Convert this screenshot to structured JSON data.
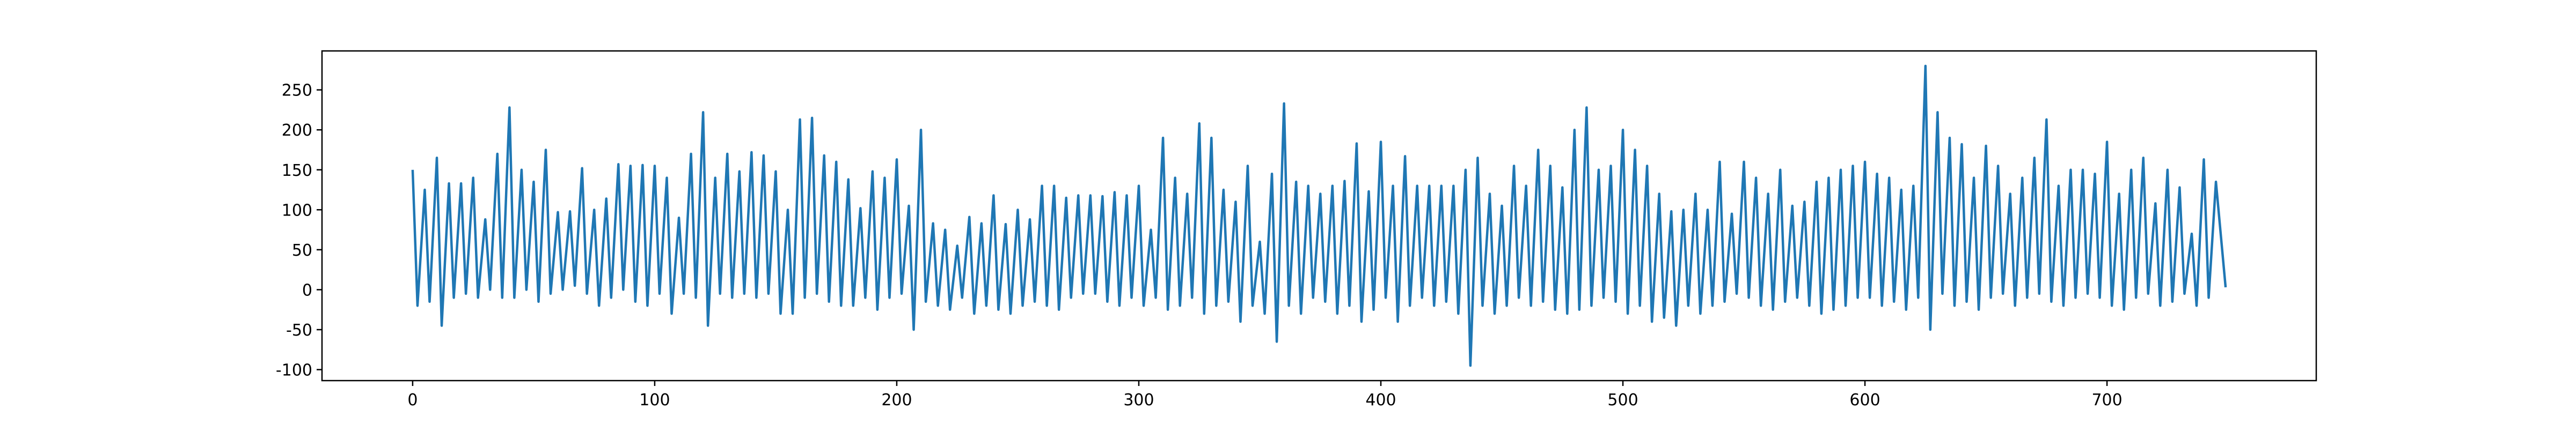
{
  "chart_data": {
    "type": "line",
    "color": "#1f77b4",
    "xlim": [
      -37.45,
      786.45
    ],
    "ylim": [
      -113.75,
      298.75
    ],
    "xticks": [
      0,
      100,
      200,
      300,
      400,
      500,
      600,
      700
    ],
    "yticks": [
      -100,
      -50,
      0,
      50,
      100,
      150,
      200,
      250
    ],
    "x": [
      0,
      2,
      5,
      7,
      10,
      12,
      15,
      17,
      20,
      22,
      25,
      27,
      30,
      32,
      35,
      37,
      40,
      42,
      45,
      47,
      50,
      52,
      55,
      57,
      60,
      62,
      65,
      67,
      70,
      72,
      75,
      77,
      80,
      82,
      85,
      87,
      90,
      92,
      95,
      97,
      100,
      102,
      105,
      107,
      110,
      112,
      115,
      117,
      120,
      122,
      125,
      127,
      130,
      132,
      135,
      137,
      140,
      142,
      145,
      147,
      150,
      152,
      155,
      157,
      160,
      162,
      165,
      167,
      170,
      172,
      175,
      177,
      180,
      182,
      185,
      187,
      190,
      192,
      195,
      197,
      200,
      202,
      205,
      207,
      210,
      212,
      215,
      217,
      220,
      222,
      225,
      227,
      230,
      232,
      235,
      237,
      240,
      242,
      245,
      247,
      250,
      252,
      255,
      257,
      260,
      262,
      265,
      267,
      270,
      272,
      275,
      277,
      280,
      282,
      285,
      287,
      290,
      292,
      295,
      297,
      300,
      302,
      305,
      307,
      310,
      312,
      315,
      317,
      320,
      322,
      325,
      327,
      330,
      332,
      335,
      337,
      340,
      342,
      345,
      347,
      350,
      352,
      355,
      357,
      360,
      362,
      365,
      367,
      370,
      372,
      375,
      377,
      380,
      382,
      385,
      387,
      390,
      392,
      395,
      397,
      400,
      402,
      405,
      407,
      410,
      412,
      415,
      417,
      420,
      422,
      425,
      427,
      430,
      432,
      435,
      437,
      440,
      442,
      445,
      447,
      450,
      452,
      455,
      457,
      460,
      462,
      465,
      467,
      470,
      472,
      475,
      477,
      480,
      482,
      485,
      487,
      490,
      492,
      495,
      497,
      500,
      502,
      505,
      507,
      510,
      512,
      515,
      517,
      520,
      522,
      525,
      527,
      530,
      532,
      535,
      537,
      540,
      542,
      545,
      547,
      550,
      552,
      555,
      557,
      560,
      562,
      565,
      567,
      570,
      572,
      575,
      577,
      580,
      582,
      585,
      587,
      590,
      592,
      595,
      597,
      600,
      602,
      605,
      607,
      610,
      612,
      615,
      617,
      620,
      622,
      625,
      627,
      630,
      632,
      635,
      637,
      640,
      642,
      645,
      647,
      650,
      652,
      655,
      657,
      660,
      662,
      665,
      667,
      670,
      672,
      675,
      677,
      680,
      682,
      685,
      687,
      690,
      692,
      695,
      697,
      700,
      702,
      705,
      707,
      710,
      712,
      715,
      717,
      720,
      722,
      725,
      727,
      730,
      732,
      735,
      737,
      740,
      742,
      745,
      749
    ],
    "values": [
      150,
      -20,
      125,
      -15,
      165,
      -45,
      133,
      -10,
      133,
      -5,
      140,
      -10,
      88,
      0,
      170,
      -10,
      228,
      -10,
      150,
      0,
      135,
      -15,
      175,
      -5,
      97,
      0,
      98,
      5,
      152,
      -5,
      100,
      -20,
      114,
      -10,
      157,
      0,
      155,
      -15,
      156,
      -20,
      155,
      -5,
      140,
      -30,
      90,
      -5,
      170,
      -10,
      222,
      -45,
      140,
      -5,
      170,
      -10,
      148,
      -5,
      172,
      -10,
      168,
      -5,
      148,
      -30,
      100,
      -30,
      213,
      -10,
      215,
      -5,
      168,
      -15,
      160,
      -20,
      138,
      -20,
      102,
      -10,
      148,
      -25,
      140,
      -10,
      163,
      -5,
      105,
      -50,
      200,
      -15,
      83,
      -20,
      75,
      -25,
      55,
      -10,
      91,
      -30,
      83,
      -20,
      118,
      -25,
      82,
      -30,
      100,
      -20,
      88,
      -15,
      130,
      -20,
      130,
      -25,
      115,
      -10,
      118,
      -5,
      118,
      -5,
      117,
      -15,
      122,
      -20,
      118,
      -10,
      130,
      -20,
      75,
      -10,
      190,
      -25,
      140,
      -20,
      120,
      -10,
      208,
      -30,
      190,
      -20,
      125,
      -15,
      110,
      -40,
      155,
      -20,
      60,
      -30,
      145,
      -65,
      233,
      -20,
      135,
      -30,
      130,
      -10,
      120,
      -15,
      130,
      -30,
      136,
      -20,
      183,
      -40,
      123,
      -25,
      185,
      -10,
      130,
      -40,
      167,
      -20,
      130,
      -10,
      130,
      -20,
      130,
      -15,
      130,
      -30,
      150,
      -95,
      165,
      -20,
      120,
      -30,
      105,
      -20,
      155,
      -10,
      130,
      -20,
      175,
      -15,
      155,
      -25,
      128,
      -30,
      200,
      -25,
      228,
      -20,
      150,
      -10,
      155,
      -15,
      200,
      -30,
      175,
      -20,
      155,
      -40,
      120,
      -35,
      98,
      -45,
      100,
      -20,
      120,
      -30,
      100,
      -20,
      160,
      -15,
      95,
      -5,
      160,
      -10,
      140,
      -20,
      120,
      -25,
      150,
      -15,
      105,
      -10,
      110,
      -20,
      135,
      -30,
      140,
      -25,
      150,
      -20,
      155,
      -10,
      160,
      -10,
      145,
      -20,
      140,
      -15,
      125,
      -25,
      130,
      -10,
      280,
      -50,
      222,
      -5,
      190,
      -20,
      182,
      -15,
      140,
      -25,
      180,
      -10,
      155,
      -5,
      120,
      -20,
      140,
      -10,
      165,
      -5,
      213,
      -15,
      130,
      -20,
      150,
      -10,
      150,
      -5,
      145,
      -10,
      185,
      -20,
      120,
      -25,
      150,
      -10,
      165,
      -5,
      108,
      -20,
      150,
      -15,
      128,
      -5,
      70,
      -20,
      163,
      -10,
      135,
      3
    ]
  }
}
